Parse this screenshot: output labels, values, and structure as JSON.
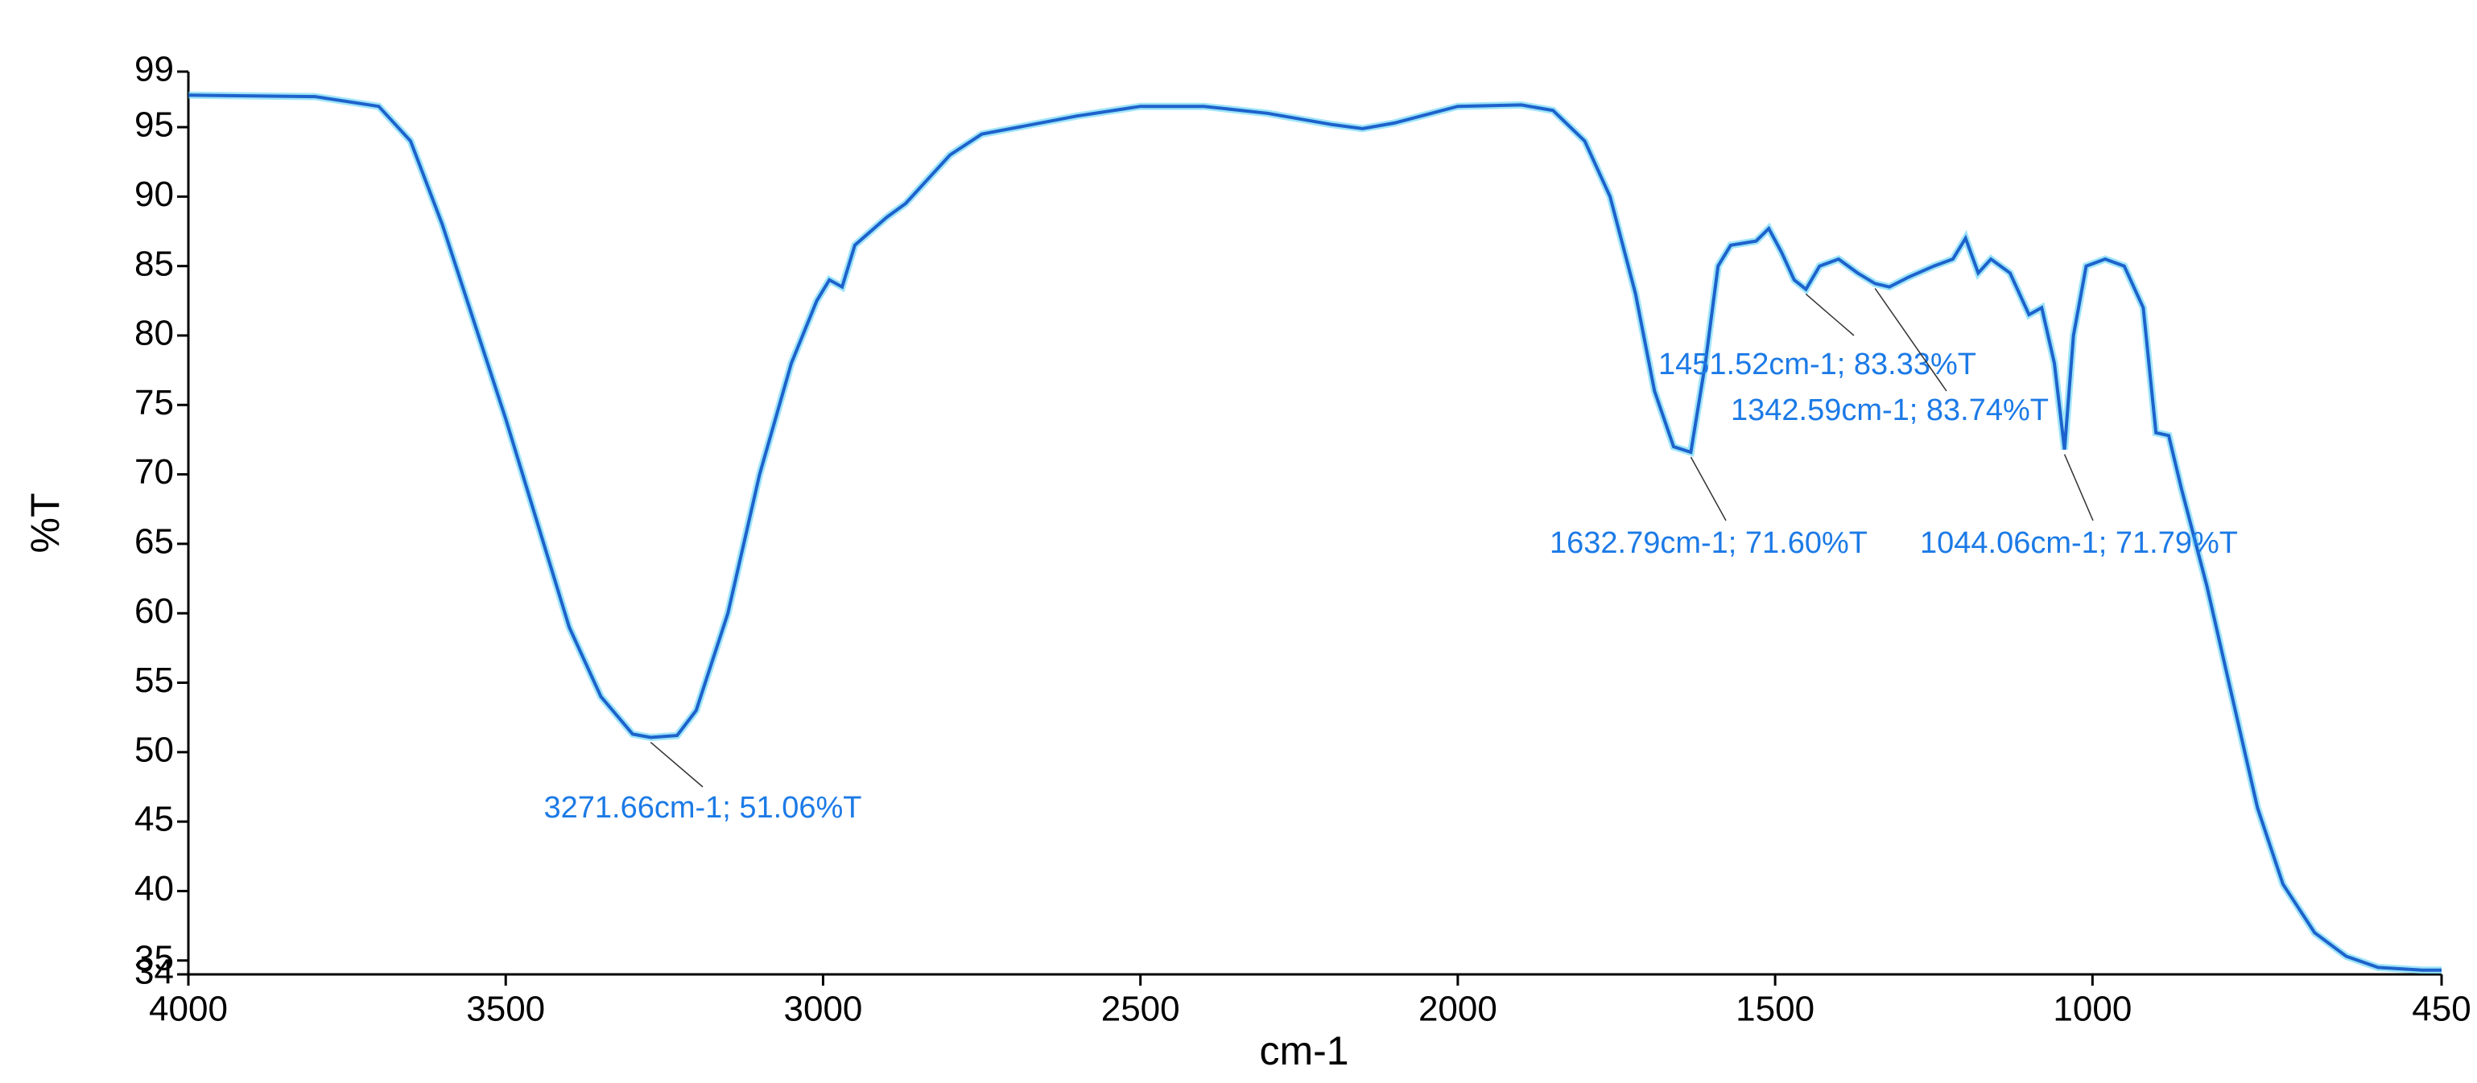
{
  "chart_data": {
    "type": "line",
    "xlabel": "cm-1",
    "ylabel": "%T",
    "xlim": [
      4000,
      450
    ],
    "ylim": [
      34,
      99
    ],
    "xticks": [
      4000,
      3500,
      3000,
      2500,
      2000,
      1500,
      1000,
      450
    ],
    "yticks": [
      34,
      35,
      40,
      45,
      50,
      55,
      60,
      65,
      70,
      75,
      80,
      85,
      90,
      95,
      99
    ],
    "series": [
      {
        "color": "#1d62cc",
        "x": [
          4000,
          3800,
          3700,
          3650,
          3600,
          3550,
          3500,
          3450,
          3400,
          3350,
          3300,
          3271.66,
          3230,
          3200,
          3150,
          3100,
          3050,
          3010,
          2990,
          2970,
          2950,
          2900,
          2870,
          2800,
          2750,
          2600,
          2500,
          2400,
          2300,
          2200,
          2150,
          2100,
          2000,
          1900,
          1850,
          1800,
          1760,
          1720,
          1690,
          1660,
          1632.79,
          1610,
          1590,
          1570,
          1530,
          1510,
          1490,
          1470,
          1451.52,
          1430,
          1400,
          1370,
          1342.59,
          1320,
          1290,
          1250,
          1220,
          1200,
          1180,
          1160,
          1130,
          1100,
          1080,
          1060,
          1044.06,
          1030,
          1010,
          980,
          950,
          920,
          900,
          880,
          860,
          820,
          780,
          740,
          700,
          650,
          600,
          550,
          480,
          450
        ],
        "values": [
          97.3,
          97.2,
          96.5,
          94,
          88,
          81,
          74,
          66.5,
          59,
          54,
          51.3,
          51.06,
          51.2,
          53,
          60,
          70,
          78,
          82.5,
          84,
          83.5,
          86.5,
          88.5,
          89.5,
          93,
          94.5,
          95.8,
          96.5,
          96.5,
          96,
          95.2,
          94.9,
          95.3,
          96.5,
          96.6,
          96.2,
          94,
          90,
          83,
          76,
          72,
          71.6,
          78,
          85,
          86.5,
          86.8,
          87.7,
          86,
          84,
          83.33,
          85,
          85.5,
          84.5,
          83.74,
          83.5,
          84.2,
          85,
          85.5,
          87,
          84.5,
          85.5,
          84.5,
          81.5,
          82,
          78,
          71.79,
          80,
          85,
          85.5,
          85,
          82,
          73,
          72.8,
          69,
          62,
          54,
          46,
          40.5,
          37,
          35.3,
          34.5,
          34.3,
          34.3
        ]
      }
    ],
    "annotations": [
      {
        "text": "3271.66cm-1; 51.06%T",
        "x": 3271.66,
        "y": 51.06
      },
      {
        "text": "1632.79cm-1; 71.60%T",
        "x": 1632.79,
        "y": 71.6
      },
      {
        "text": "1044.06cm-1; 71.79%T",
        "x": 1044.06,
        "y": 71.79
      },
      {
        "text": "1451.52cm-1; 83.33%T",
        "x": 1451.52,
        "y": 83.33
      },
      {
        "text": "1342.59cm-1; 83.74%T",
        "x": 1342.59,
        "y": 83.74
      }
    ]
  }
}
